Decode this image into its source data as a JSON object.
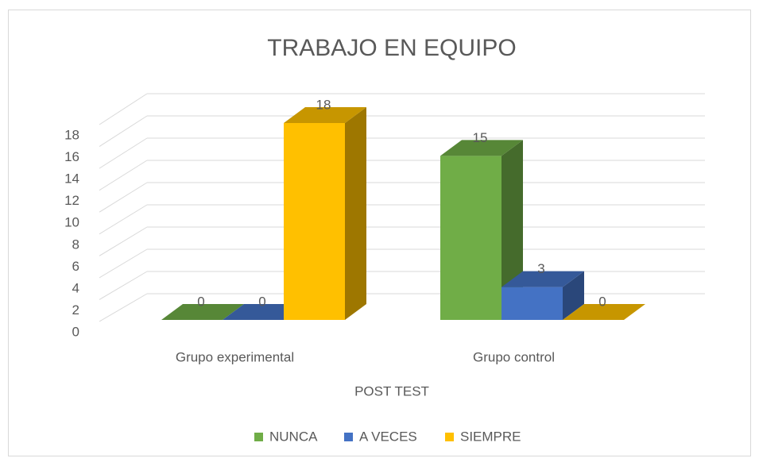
{
  "chart_data": {
    "type": "bar3d",
    "title": "TRABAJO EN EQUIPO",
    "x_label": "POST TEST",
    "categories": [
      "Grupo experimental",
      "Grupo control"
    ],
    "series": [
      {
        "name": "NUNCA",
        "color": "#70ad47",
        "values": [
          0,
          15
        ]
      },
      {
        "name": "A VECES",
        "color": "#4472c4",
        "values": [
          0,
          3
        ]
      },
      {
        "name": "SIEMPRE",
        "color": "#ffc000",
        "values": [
          18,
          0
        ]
      }
    ],
    "ylim": [
      0,
      18
    ],
    "yticks": [
      0,
      2,
      4,
      6,
      8,
      10,
      12,
      14,
      16,
      18
    ],
    "grid": true,
    "legend": "bottom"
  }
}
